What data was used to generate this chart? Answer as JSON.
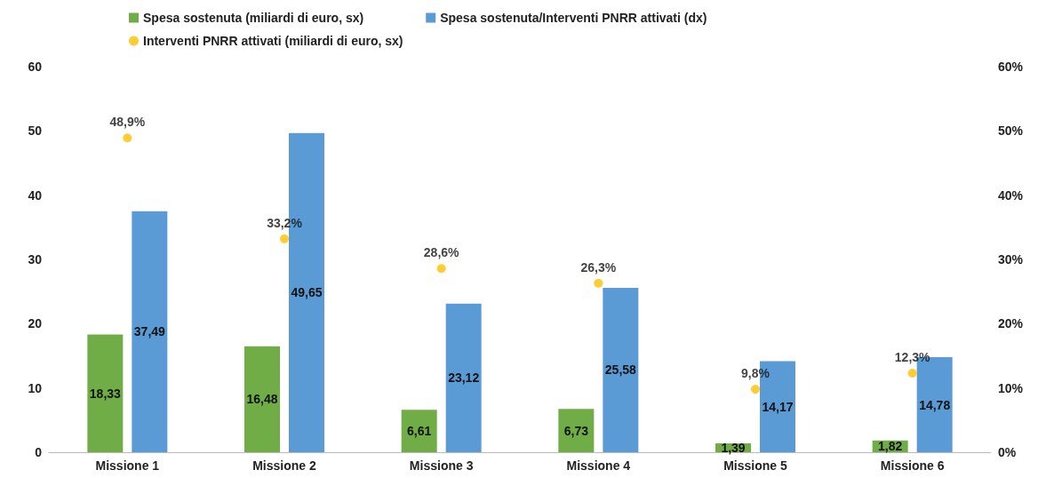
{
  "chart_data": {
    "type": "bar",
    "categories": [
      "Missione 1",
      "Missione 2",
      "Missione 3",
      "Missione 4",
      "Missione 5",
      "Missione 6"
    ],
    "series": [
      {
        "name": "Spesa sostenuta (miliardi di euro, sx)",
        "color": "#70ad47",
        "values": [
          18.33,
          16.48,
          6.61,
          6.73,
          1.39,
          1.82
        ],
        "value_labels": [
          "18,33",
          "16,48",
          "6,61",
          "6,73",
          "1,39",
          "1,82"
        ]
      },
      {
        "name": "Spesa sostenuta/Interventi PNRR attivati (dx)",
        "color": "#5b9bd5",
        "values": [
          37.49,
          49.65,
          23.12,
          25.58,
          14.17,
          14.78
        ],
        "value_labels": [
          "37,49",
          "49,65",
          "23,12",
          "25,58",
          "14,17",
          "14,78"
        ]
      },
      {
        "name": "Interventi PNRR attivati (miliardi di euro, sx)",
        "type": "scatter",
        "axis": "y2",
        "color": "#ffc000",
        "x": [
          "Missione 1",
          "Missione 2",
          "Missione 3",
          "Missione 4",
          "Missione 5",
          "Missione 6"
        ],
        "values": [
          48.9,
          33.2,
          28.6,
          26.3,
          9.8,
          12.3
        ],
        "value_labels": [
          "48,9%",
          "33,2%",
          "28,6%",
          "26,3%",
          "9,8%",
          "12,3%"
        ]
      }
    ],
    "ylim": [
      0,
      60
    ],
    "yticks": [
      0,
      10,
      20,
      30,
      40,
      50,
      60
    ],
    "y2lim": [
      0,
      60
    ],
    "y2ticks": [
      {
        "value": 0,
        "label": "0%"
      },
      {
        "value": 10,
        "label": "10%"
      },
      {
        "value": 20,
        "label": "20%"
      },
      {
        "value": 30,
        "label": "30%"
      },
      {
        "value": 40,
        "label": "40%"
      },
      {
        "value": 50,
        "label": "50%"
      },
      {
        "value": 60,
        "label": "60%"
      }
    ],
    "marker": "circle",
    "grid": false,
    "legend": "top"
  }
}
